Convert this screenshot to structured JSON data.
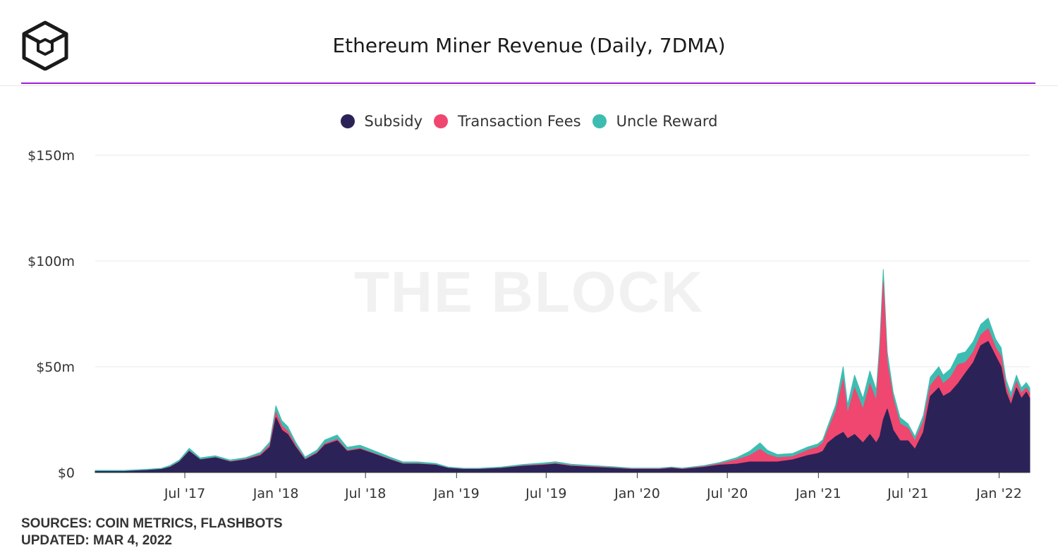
{
  "header": {
    "title": "Ethereum Miner Revenue (Daily, 7DMA)",
    "logo_icon": "the-block-cube-logo-icon"
  },
  "watermark": "THE BLOCK",
  "footer": {
    "sources": "SOURCES: COIN METRICS, FLASHBOTS",
    "updated": "UPDATED: MAR 4, 2022"
  },
  "colors": {
    "accent": "#a21cd6",
    "subsidy": "#2b2358",
    "fees": "#ef476f",
    "uncle": "#3dbdb2"
  },
  "chart_data": {
    "type": "area",
    "stacked": true,
    "title": "Ethereum Miner Revenue (Daily, 7DMA)",
    "xlabel": "",
    "ylabel": "",
    "ylim": [
      0,
      150
    ],
    "yticks": [
      0,
      50,
      100,
      150
    ],
    "ytick_labels": [
      "$0",
      "$50m",
      "$100m",
      "$150m"
    ],
    "xticks": [
      "2017-07-01",
      "2018-01-01",
      "2018-07-01",
      "2019-01-01",
      "2019-07-01",
      "2020-01-01",
      "2020-07-01",
      "2021-01-01",
      "2021-07-01",
      "2022-01-01"
    ],
    "xtick_labels": [
      "Jul '17",
      "Jan '18",
      "Jul '18",
      "Jan '19",
      "Jul '19",
      "Jan '20",
      "Jul '20",
      "Jan '21",
      "Jul '21",
      "Jan '22"
    ],
    "x_range": [
      "2017-01-01",
      "2022-03-04"
    ],
    "grid": "horizontal",
    "legend": "top-center",
    "x": [
      "2017-01-01",
      "2017-03-01",
      "2017-04-15",
      "2017-05-15",
      "2017-06-01",
      "2017-06-20",
      "2017-07-10",
      "2017-08-01",
      "2017-09-01",
      "2017-10-01",
      "2017-11-01",
      "2017-12-01",
      "2017-12-20",
      "2018-01-01",
      "2018-01-13",
      "2018-01-25",
      "2018-02-10",
      "2018-03-01",
      "2018-03-25",
      "2018-04-10",
      "2018-05-05",
      "2018-05-25",
      "2018-06-20",
      "2018-07-15",
      "2018-08-20",
      "2018-09-15",
      "2018-10-15",
      "2018-11-20",
      "2018-12-15",
      "2019-01-15",
      "2019-02-15",
      "2019-04-01",
      "2019-05-15",
      "2019-06-25",
      "2019-07-20",
      "2019-08-20",
      "2019-10-01",
      "2019-11-15",
      "2019-12-20",
      "2020-01-15",
      "2020-02-15",
      "2020-03-10",
      "2020-04-01",
      "2020-05-15",
      "2020-06-15",
      "2020-07-20",
      "2020-08-15",
      "2020-09-05",
      "2020-09-20",
      "2020-10-10",
      "2020-11-10",
      "2020-12-10",
      "2020-12-31",
      "2021-01-10",
      "2021-01-20",
      "2021-02-05",
      "2021-02-20",
      "2021-03-01",
      "2021-03-15",
      "2021-04-01",
      "2021-04-15",
      "2021-04-28",
      "2021-05-05",
      "2021-05-12",
      "2021-05-20",
      "2021-06-01",
      "2021-06-15",
      "2021-07-01",
      "2021-07-15",
      "2021-08-01",
      "2021-08-15",
      "2021-09-01",
      "2021-09-10",
      "2021-09-25",
      "2021-10-10",
      "2021-10-25",
      "2021-11-10",
      "2021-11-25",
      "2021-12-10",
      "2021-12-25",
      "2022-01-05",
      "2022-01-15",
      "2022-01-25",
      "2022-02-05",
      "2022-02-15",
      "2022-02-25",
      "2022-03-04"
    ],
    "series": [
      {
        "name": "Subsidy",
        "values": [
          0.5,
          0.5,
          1,
          1.5,
          2.5,
          5,
          10,
          6,
          7,
          5,
          6,
          8,
          12,
          26,
          20,
          18,
          12,
          6,
          9,
          13,
          15,
          10,
          11,
          9,
          6,
          4,
          4,
          3.5,
          2,
          1.5,
          1.5,
          2,
          3,
          3.5,
          4,
          3,
          2.5,
          2,
          1.5,
          1.5,
          1.5,
          2,
          1.5,
          2.5,
          3.5,
          4,
          5,
          5,
          5,
          5,
          6,
          8,
          9,
          10,
          14,
          17,
          19,
          16,
          18,
          14,
          18,
          14,
          17,
          25,
          30,
          20,
          15,
          15,
          11,
          19,
          36,
          40,
          36,
          38,
          42,
          47,
          52,
          60,
          62,
          55,
          50,
          38,
          32,
          40,
          35,
          38,
          35
        ]
      },
      {
        "name": "Transaction Fees",
        "values": [
          0,
          0,
          0,
          0,
          0.1,
          0.1,
          0.2,
          0.1,
          0.1,
          0.2,
          0.3,
          0.5,
          1,
          2.5,
          2,
          1.5,
          0.8,
          0.3,
          0.4,
          0.6,
          0.7,
          0.4,
          0.4,
          0.3,
          0.2,
          0.2,
          0.2,
          0.1,
          0.1,
          0.1,
          0.1,
          0.1,
          0.2,
          0.3,
          0.3,
          0.3,
          0.3,
          0.2,
          0.2,
          0.2,
          0.2,
          0.2,
          0.2,
          0.3,
          0.6,
          2,
          3,
          6,
          3.5,
          2,
          1.5,
          2.5,
          3,
          4,
          6,
          12,
          25,
          12,
          22,
          16,
          24,
          20,
          40,
          65,
          22,
          15,
          8,
          6,
          4,
          5,
          5,
          6,
          6,
          7,
          9,
          5,
          5,
          5,
          6,
          4,
          5,
          3,
          2.5,
          3,
          2.5,
          2,
          2.5
        ]
      },
      {
        "name": "Uncle Reward",
        "values": [
          0.5,
          0.5,
          0.5,
          0.5,
          0.7,
          0.8,
          1.2,
          0.8,
          0.8,
          0.7,
          0.7,
          1,
          1.5,
          3,
          2.5,
          2.2,
          1.5,
          1,
          1.2,
          1.8,
          2,
          1.5,
          1.5,
          1.3,
          1,
          0.8,
          0.8,
          0.7,
          0.5,
          0.4,
          0.4,
          0.5,
          0.6,
          0.7,
          0.8,
          0.6,
          0.5,
          0.5,
          0.4,
          0.4,
          0.4,
          0.4,
          0.4,
          0.5,
          0.6,
          1,
          2,
          3,
          2,
          1.5,
          1.5,
          1.5,
          1.5,
          1.5,
          2,
          3,
          6,
          4,
          6,
          5,
          6,
          5,
          5,
          6,
          5,
          3,
          3,
          2,
          2,
          3,
          4,
          4,
          4,
          4,
          5,
          5,
          5,
          5,
          5,
          4,
          4,
          3,
          3,
          3,
          2.5,
          2.5,
          2.5
        ]
      }
    ]
  }
}
